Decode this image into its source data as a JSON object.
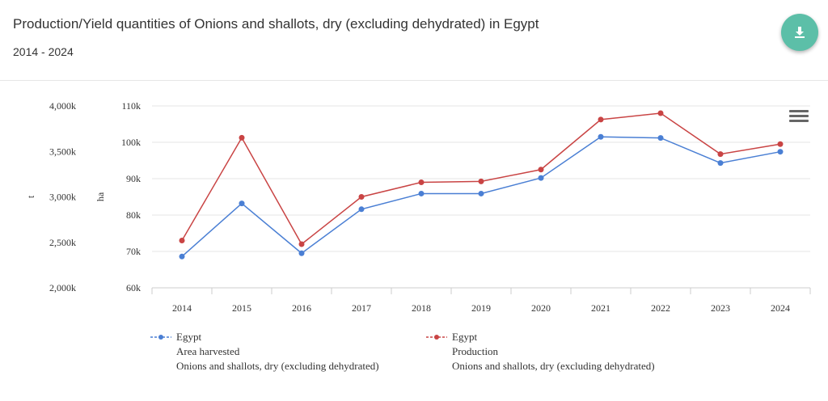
{
  "header": {
    "title": "Production/Yield quantities of Onions and shallots, dry (excluding dehydrated) in Egypt",
    "subtitle": "2014 - 2024"
  },
  "download_button": {
    "icon": "download-icon"
  },
  "menu_button": {
    "icon": "hamburger-menu-icon"
  },
  "colors": {
    "area": "#4a7fd4",
    "production": "#c94444",
    "accent": "#5cbfa8"
  },
  "chart_data": {
    "type": "line",
    "categories": [
      "2014",
      "2015",
      "2016",
      "2017",
      "2018",
      "2019",
      "2020",
      "2021",
      "2022",
      "2023",
      "2024"
    ],
    "axes": {
      "left_outer": {
        "label": "t",
        "ticks": [
          "4,000k",
          "3,500k",
          "3,000k",
          "2,500k",
          "2,000k"
        ],
        "range": [
          2000,
          4000
        ]
      },
      "left_inner": {
        "label": "ha",
        "ticks": [
          "110k",
          "100k",
          "90k",
          "80k",
          "70k",
          "60k"
        ],
        "range": [
          60,
          110
        ]
      }
    },
    "series": [
      {
        "name": "Egypt",
        "element": "Area harvested",
        "item": "Onions and shallots, dry (excluding dehydrated)",
        "axis": "left_inner",
        "color": "#4a7fd4",
        "values": [
          68.6,
          83.2,
          69.5,
          81.6,
          85.9,
          85.9,
          90.2,
          101.5,
          101.2,
          94.3,
          97.4
        ]
      },
      {
        "name": "Egypt",
        "element": "Production",
        "item": "Onions and shallots, dry (excluding dehydrated)",
        "axis": "left_outer",
        "color": "#c94444",
        "values": [
          2520,
          3650,
          2480,
          3000,
          3160,
          3170,
          3300,
          3850,
          3920,
          3470,
          3580
        ]
      }
    ]
  }
}
